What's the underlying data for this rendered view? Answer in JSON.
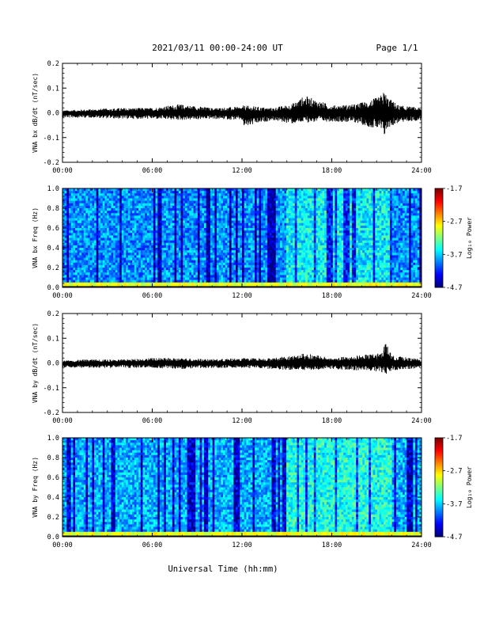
{
  "header": {
    "title": "2021/03/11  00:00-24:00 UT",
    "page": "Page 1/1"
  },
  "xaxis": {
    "label": "Universal Time (hh:mm)",
    "ticks": [
      "00:00",
      "06:00",
      "12:00",
      "18:00",
      "24:00"
    ],
    "range_hours": [
      0,
      24
    ]
  },
  "colorbar": {
    "label": "Log₁₀ Power",
    "ticks": [
      "-1.7",
      "-2.7",
      "-3.7",
      "-4.7"
    ],
    "range": [
      -4.7,
      -1.7
    ]
  },
  "chart_data": [
    {
      "type": "line",
      "ylabel": "VNA bx dB/dt (nT/sec)",
      "ylim": [
        -0.2,
        0.2
      ],
      "yticks": [
        "0.2",
        "0.1",
        "0.0",
        "-0.1",
        "-0.2"
      ],
      "x_hours": [
        0,
        2,
        4,
        6,
        7.8,
        10,
        12,
        12.1,
        14,
        15.3,
        16.2,
        18,
        19.6,
        21.2,
        21.5,
        21.8,
        22.5,
        24
      ],
      "upper_envelope": [
        0.01,
        0.015,
        0.02,
        0.02,
        0.035,
        0.02,
        0.025,
        0.03,
        0.02,
        0.035,
        0.07,
        0.03,
        0.035,
        0.065,
        0.09,
        0.06,
        0.03,
        0.02
      ],
      "lower_envelope": [
        -0.02,
        -0.02,
        -0.025,
        -0.025,
        -0.03,
        -0.025,
        -0.03,
        -0.06,
        -0.03,
        -0.045,
        -0.04,
        -0.035,
        -0.04,
        -0.07,
        -0.1,
        -0.06,
        -0.04,
        -0.03
      ]
    },
    {
      "type": "heatmap",
      "ylabel": "VNA bx Freq (Hz)",
      "ylim": [
        0,
        1
      ],
      "yticks": [
        "1.0",
        "0.8",
        "0.6",
        "0.4",
        "0.2",
        "0.0"
      ],
      "zlim": [
        -4.7,
        -1.7
      ],
      "background_log_power": -3.9,
      "low_freq_band": {
        "freq_hz": [
          0,
          0.05
        ],
        "log_power": -2.9
      }
    },
    {
      "type": "line",
      "ylabel": "VNA by dB/dt (nT/sec)",
      "ylim": [
        -0.2,
        0.2
      ],
      "yticks": [
        "0.2",
        "0.1",
        "0.0",
        "-0.1",
        "-0.2"
      ],
      "x_hours": [
        0,
        2,
        4,
        6,
        8,
        10,
        12,
        14,
        15.3,
        16.2,
        18,
        19.6,
        21.3,
        21.6,
        22,
        24
      ],
      "upper_envelope": [
        0.01,
        0.015,
        0.015,
        0.02,
        0.02,
        0.015,
        0.02,
        0.02,
        0.03,
        0.04,
        0.02,
        0.03,
        0.04,
        0.09,
        0.03,
        0.015
      ],
      "lower_envelope": [
        -0.02,
        -0.02,
        -0.02,
        -0.02,
        -0.025,
        -0.02,
        -0.02,
        -0.025,
        -0.03,
        -0.03,
        -0.025,
        -0.03,
        -0.035,
        -0.05,
        -0.03,
        -0.02
      ]
    },
    {
      "type": "heatmap",
      "ylabel": "VNA by Freq (Hz)",
      "ylim": [
        0,
        1
      ],
      "yticks": [
        "1.0",
        "0.8",
        "0.6",
        "0.4",
        "0.2",
        "0.0"
      ],
      "zlim": [
        -4.7,
        -1.7
      ],
      "background_log_power": -3.8,
      "low_freq_band": {
        "freq_hz": [
          0,
          0.05
        ],
        "log_power": -2.9
      }
    }
  ]
}
